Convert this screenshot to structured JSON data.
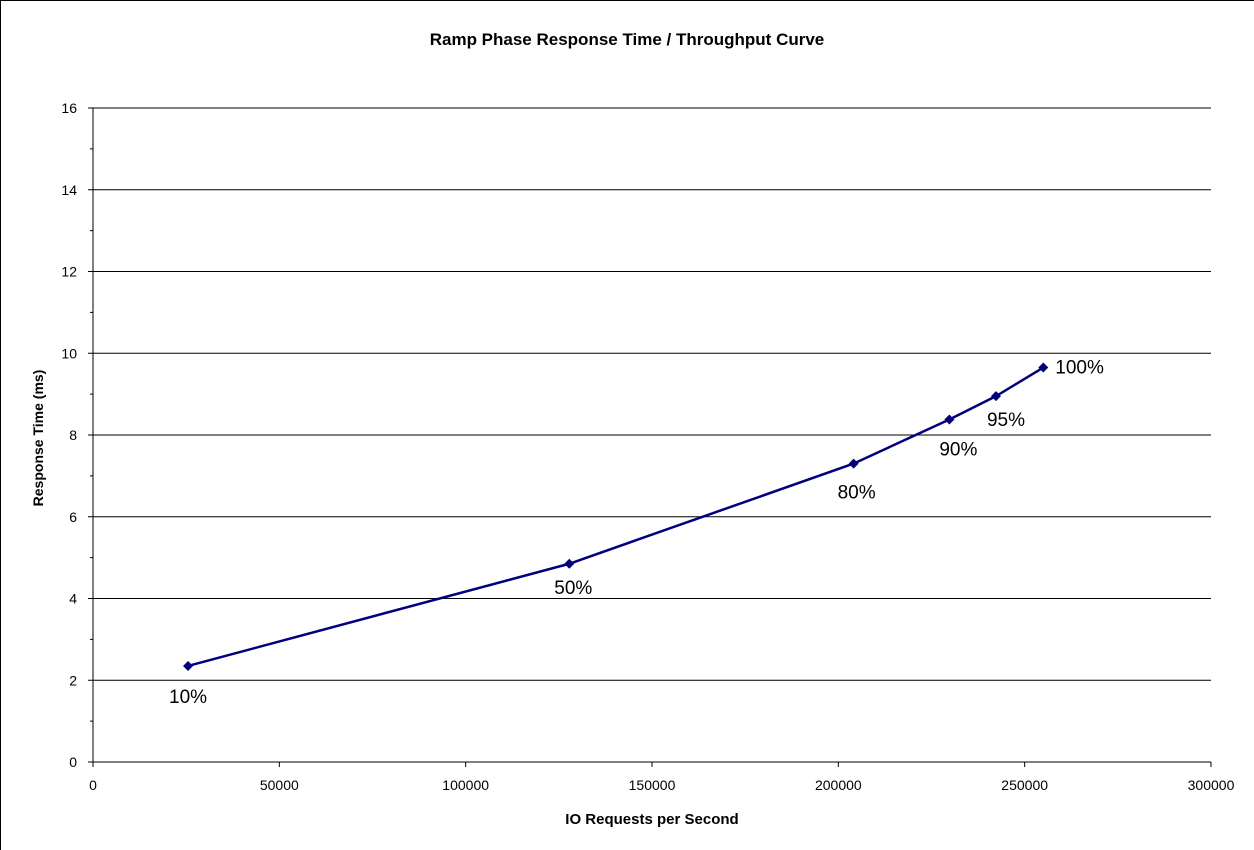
{
  "chart_data": {
    "type": "line",
    "title": "Ramp Phase Response Time / Throughput Curve",
    "xlabel": "IO Requests  per Second",
    "ylabel": "Response  Time (ms)",
    "xlim": [
      0,
      300000
    ],
    "ylim": [
      0,
      16
    ],
    "xticks": [
      0,
      50000,
      100000,
      150000,
      200000,
      250000,
      300000
    ],
    "yticks": [
      0,
      2,
      4,
      6,
      8,
      10,
      12,
      14,
      16
    ],
    "grid": "horizontal",
    "line_color": "#000080",
    "series": [
      {
        "x": [
          25500,
          127800,
          204100,
          229800,
          242300,
          255000
        ],
        "y": [
          2.35,
          4.85,
          7.3,
          8.38,
          8.95,
          9.65
        ],
        "labels": [
          "10%",
          "50%",
          "80%",
          "90%",
          "95%",
          "100%"
        ]
      }
    ]
  }
}
